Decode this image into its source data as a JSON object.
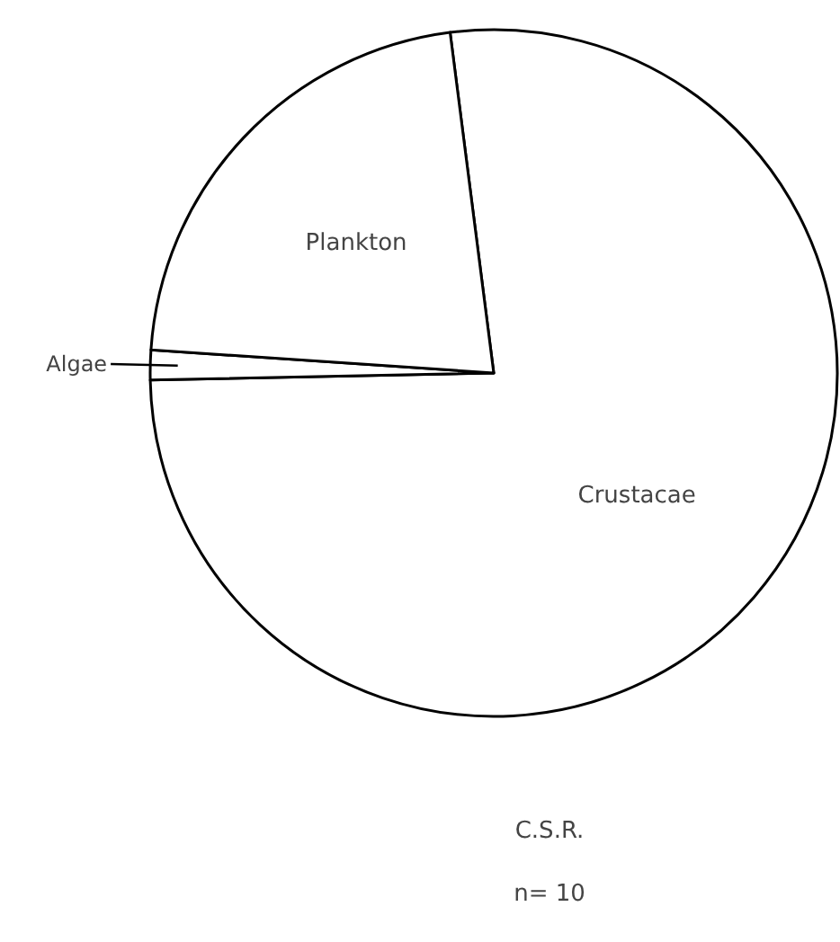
{
  "chart_data": {
    "type": "pie",
    "title": "C.S.R.",
    "subtitle": "n= 10",
    "categories": [
      "Crustacae",
      "Algae",
      "Plankton"
    ],
    "values": [
      76.7,
      1.4,
      21.9
    ],
    "colors": [
      "#ffffff",
      "#ffffff",
      "#ffffff"
    ]
  }
}
